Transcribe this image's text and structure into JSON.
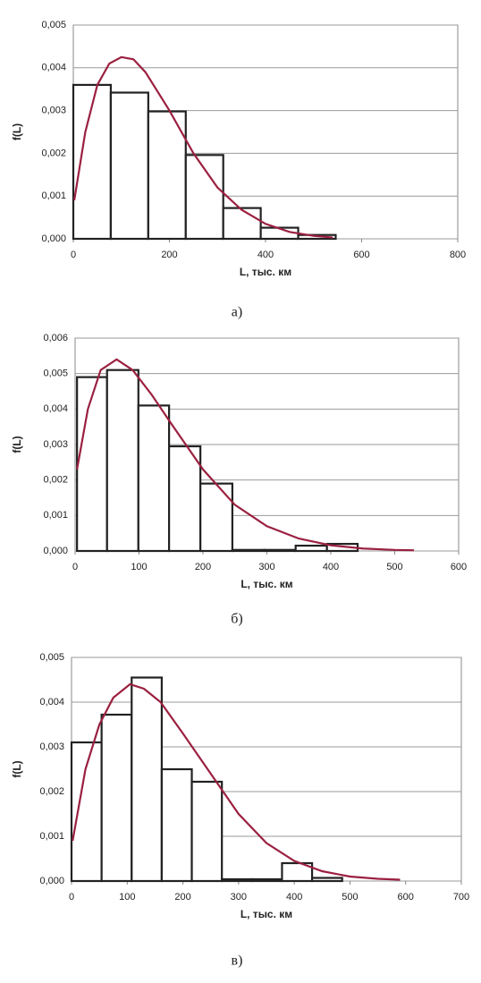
{
  "chart_data": [
    {
      "type": "histogram",
      "caption": "а)",
      "xlabel": "L, тыс. км",
      "ylabel": "f(L)",
      "bins": [
        0,
        78,
        156,
        234,
        312,
        390,
        468,
        546
      ],
      "values": [
        0.0036,
        0.00342,
        0.00298,
        0.00196,
        0.00072,
        0.00026,
        9e-05
      ],
      "color": "#222222",
      "curve": {
        "color": "#9b2040",
        "x": [
          2,
          25,
          50,
          75,
          100,
          125,
          150,
          200,
          250,
          300,
          350,
          400,
          450,
          500,
          540
        ],
        "values": [
          0.0009,
          0.0025,
          0.0036,
          0.0041,
          0.00425,
          0.0042,
          0.0039,
          0.003,
          0.002,
          0.0012,
          0.00068,
          0.00035,
          0.00016,
          7e-05,
          3e-05
        ]
      },
      "xlim": [
        0,
        800
      ],
      "xticks": [
        0,
        200,
        400,
        600,
        800
      ],
      "ylim": [
        0,
        0.005
      ],
      "yticks": [
        {
          "value": 0,
          "label": "0,000"
        },
        {
          "value": 0.001,
          "label": "0,001"
        },
        {
          "value": 0.002,
          "label": "0,002"
        },
        {
          "value": 0.003,
          "label": "0,003"
        },
        {
          "value": 0.004,
          "label": "0,004"
        },
        {
          "value": 0.005,
          "label": "0,005"
        }
      ],
      "grid": true
    },
    {
      "type": "histogram",
      "caption": "б)",
      "xlabel": "L, тыс. км",
      "ylabel": "f(L)",
      "bins": [
        3,
        50,
        99,
        147,
        196,
        246,
        296,
        345,
        394,
        442
      ],
      "values": [
        0.0049,
        0.0051,
        0.0041,
        0.00295,
        0.0019,
        3e-05,
        3e-05,
        0.00015,
        0.0002
      ],
      "color": "#222222",
      "curve": {
        "color": "#9b2040",
        "x": [
          3,
          20,
          40,
          65,
          90,
          120,
          150,
          200,
          250,
          300,
          350,
          400,
          450,
          500,
          530
        ],
        "values": [
          0.0023,
          0.004,
          0.0051,
          0.0054,
          0.0051,
          0.0044,
          0.0036,
          0.0023,
          0.0013,
          0.0007,
          0.00035,
          0.00016,
          7e-05,
          3e-05,
          2e-05
        ]
      },
      "xlim": [
        0,
        600
      ],
      "xticks": [
        0,
        100,
        200,
        300,
        400,
        500,
        600
      ],
      "ylim": [
        0,
        0.006
      ],
      "yticks": [
        {
          "value": 0,
          "label": "0,000"
        },
        {
          "value": 0.001,
          "label": "0,001"
        },
        {
          "value": 0.002,
          "label": "0,002"
        },
        {
          "value": 0.003,
          "label": "0,003"
        },
        {
          "value": 0.004,
          "label": "0,004"
        },
        {
          "value": 0.005,
          "label": "0,005"
        },
        {
          "value": 0.006,
          "label": "0,006"
        }
      ],
      "grid": true
    },
    {
      "type": "histogram",
      "caption": "в)",
      "xlabel": "L, тыс. км",
      "ylabel": "f(L)",
      "bins": [
        0,
        54,
        108,
        162,
        216,
        270,
        324,
        378,
        432,
        486
      ],
      "values": [
        0.0031,
        0.00372,
        0.00455,
        0.0025,
        0.00222,
        4e-05,
        4e-05,
        0.0004,
        7e-05
      ],
      "color": "#222222",
      "curve": {
        "color": "#9b2040",
        "x": [
          2,
          25,
          50,
          75,
          105,
          130,
          160,
          200,
          250,
          300,
          350,
          400,
          450,
          500,
          550,
          590
        ],
        "values": [
          0.0009,
          0.0025,
          0.0035,
          0.0041,
          0.0044,
          0.0043,
          0.004,
          0.0033,
          0.0024,
          0.0015,
          0.00085,
          0.00045,
          0.00022,
          0.0001,
          5e-05,
          3e-05
        ]
      },
      "xlim": [
        0,
        700
      ],
      "xticks": [
        0,
        100,
        200,
        300,
        400,
        500,
        600,
        700
      ],
      "ylim": [
        0,
        0.005
      ],
      "yticks": [
        {
          "value": 0,
          "label": "0,000"
        },
        {
          "value": 0.001,
          "label": "0,001"
        },
        {
          "value": 0.002,
          "label": "0,002"
        },
        {
          "value": 0.003,
          "label": "0,003"
        },
        {
          "value": 0.004,
          "label": "0,004"
        },
        {
          "value": 0.005,
          "label": "0,005"
        }
      ],
      "grid": true
    }
  ]
}
